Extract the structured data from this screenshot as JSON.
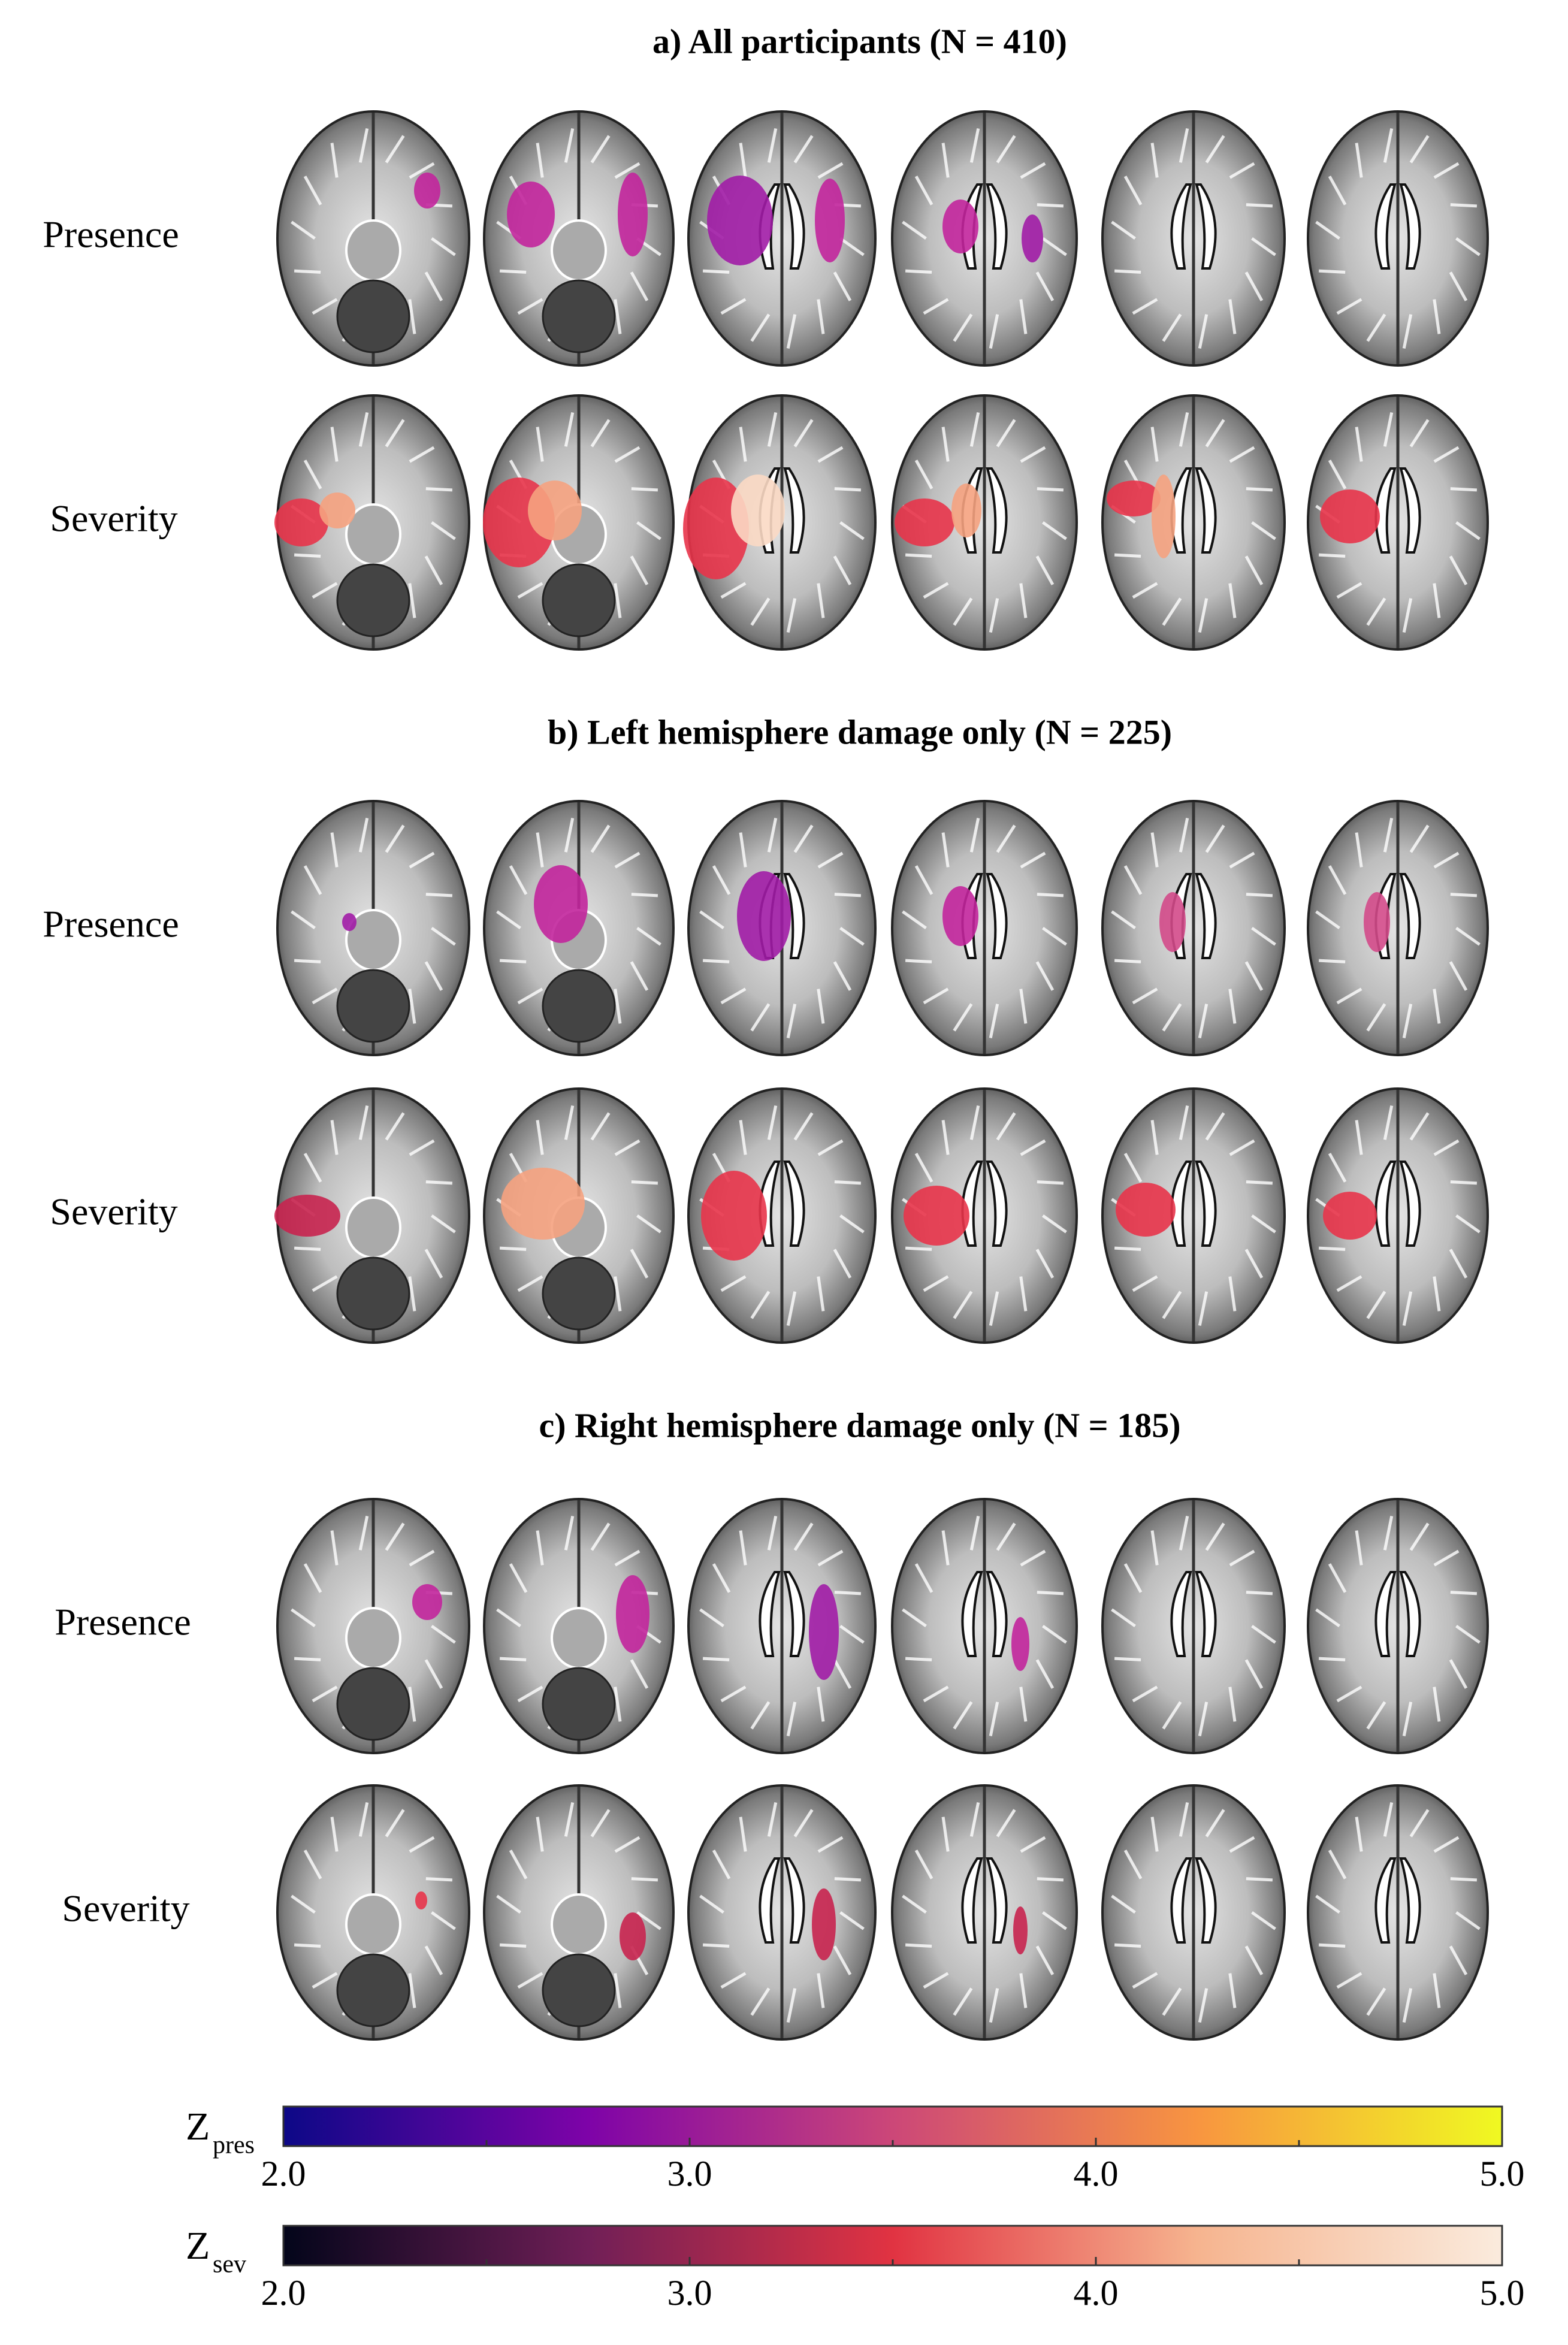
{
  "panels": [
    {
      "title": "a) All participants (N = 410)",
      "rows": [
        "Presence",
        "Severity"
      ]
    },
    {
      "title": "b) Left hemisphere damage only (N = 225)",
      "rows": [
        "Presence",
        "Severity"
      ]
    },
    {
      "title": "c) Right hemisphere damage only (N = 185)",
      "rows": [
        "Presence",
        "Severity"
      ]
    }
  ],
  "colorbars": [
    {
      "symbol": "Z",
      "subscript": "pres",
      "lim": [
        2,
        5
      ],
      "ticks": [
        {
          "value": 2,
          "label": "2.0"
        },
        {
          "value": 3,
          "label": "3.0"
        },
        {
          "value": 4,
          "label": "4.0"
        },
        {
          "value": 5,
          "label": "5.0"
        }
      ],
      "minor_ticks": [
        2.5,
        3.5,
        4.5
      ],
      "colors": [
        "#0d0887",
        "#7e03a8",
        "#cc4778",
        "#f89540",
        "#f0f921"
      ]
    },
    {
      "symbol": "Z",
      "subscript": "sev",
      "lim": [
        2,
        5
      ],
      "ticks": [
        {
          "value": 2,
          "label": "2.0"
        },
        {
          "value": 3,
          "label": "3.0"
        },
        {
          "value": 4,
          "label": "4.0"
        },
        {
          "value": 5,
          "label": "5.0"
        }
      ],
      "minor_ticks": [
        2.5,
        3.5,
        4.5
      ],
      "colors": [
        "#03051a",
        "#701f57",
        "#e13342",
        "#f6b48f",
        "#faebdd"
      ]
    }
  ]
}
